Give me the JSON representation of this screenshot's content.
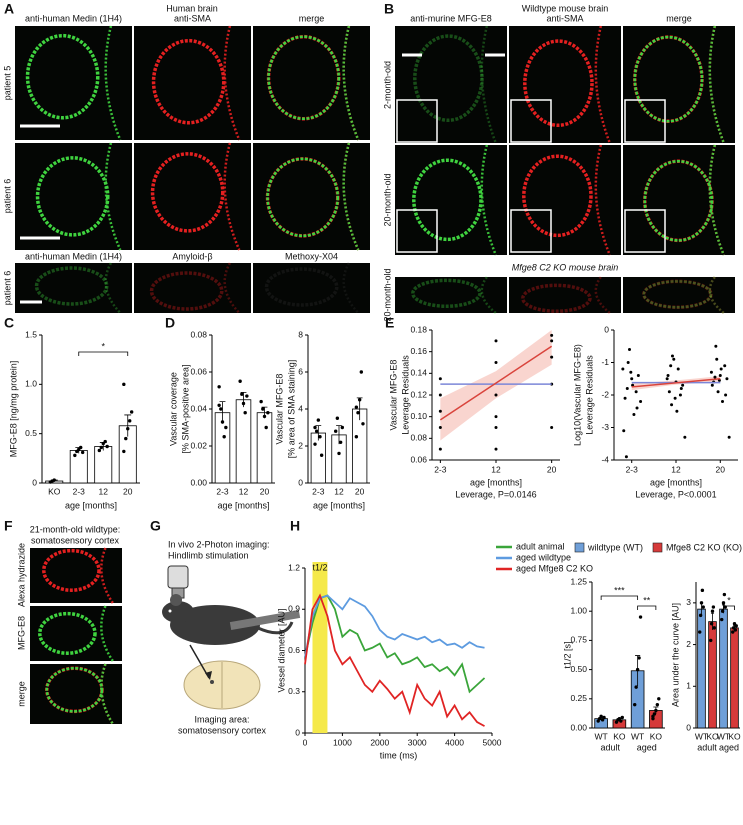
{
  "figure": {
    "letters": [
      "A",
      "B",
      "C",
      "D",
      "E",
      "F",
      "G",
      "H"
    ],
    "A": {
      "title": "Human brain",
      "headers": [
        "anti-human Medin (1H4)",
        "anti-SMA",
        "merge"
      ],
      "rows": [
        "patient 5",
        "patient 6",
        "patient 6"
      ],
      "headers2": [
        "anti-human Medin (1H4)",
        "Amyloid-β",
        "Methoxy-X04"
      ]
    },
    "B": {
      "title": "Wildtype mouse brain",
      "headers": [
        "anti-murine MFG-E8",
        "anti-SMA",
        "merge"
      ],
      "rows": [
        "2-month-old",
        "20-month-old",
        "20-month-old"
      ],
      "subtitle": "Mfge8 C2 KO mouse brain"
    },
    "F": {
      "title": [
        "21-month-old wildtype:",
        "somatosensory cortex"
      ],
      "rows": [
        "Alexa hydrazide",
        "MFG-E8",
        "merge"
      ]
    },
    "G": {
      "lines": [
        "In vivo 2-Photon imaging:",
        "Hindlimb stimulation"
      ],
      "area": [
        "Imaging area:",
        "somatosensory cortex"
      ]
    },
    "H": {
      "legend": [
        {
          "name": "wildtype (WT)",
          "color": "#6f9fd8"
        },
        {
          "name": "Mfge8 C2 KO (KO)",
          "color": "#d63a3a"
        }
      ]
    }
  },
  "chart_data": [
    {
      "type": "bar",
      "ylabel": [
        "MFG-E8 [ng/mg protein]"
      ],
      "xlabel": "age [months]",
      "categories": [
        "KO",
        "2-3",
        "12",
        "20"
      ],
      "values": [
        0.02,
        0.33,
        0.37,
        0.58
      ],
      "errors": [
        0.01,
        0.03,
        0.04,
        0.11
      ],
      "points": [
        [
          0.01,
          0.02,
          0.03
        ],
        [
          0.28,
          0.32,
          0.34,
          0.36,
          0.31
        ],
        [
          0.33,
          0.36,
          0.4,
          0.42,
          0.37
        ],
        [
          0.32,
          0.45,
          0.55,
          0.63,
          0.72,
          1.0
        ]
      ],
      "ylim": [
        0,
        1.5
      ],
      "yticks": [
        0,
        0.5,
        {
          "value": 1,
          "label": "1.0"
        },
        1.5
      ],
      "annotations": [
        "*"
      ]
    },
    {
      "type": "bar",
      "ylabel": [
        "Vascular coverage",
        "[% SMA-positive area]"
      ],
      "xlabel": "age [months]",
      "categories": [
        "2-3",
        "12",
        "20"
      ],
      "values": [
        0.038,
        0.045,
        0.038
      ],
      "errors": [
        0.006,
        0.004,
        0.003
      ],
      "points": [
        [
          0.052,
          0.04,
          0.033,
          0.025,
          0.03,
          0.042
        ],
        [
          0.055,
          0.048,
          0.043,
          0.038,
          0.047
        ],
        [
          0.044,
          0.04,
          0.036,
          0.03,
          0.038
        ]
      ],
      "ylim": [
        0,
        0.08
      ],
      "yticks": [
        {
          "value": 0,
          "label": "0.00"
        },
        0.02,
        0.04,
        0.06,
        0.08
      ]
    },
    {
      "type": "bar",
      "ylabel": [
        "Vascular MFG-E8",
        "[% area of SMA staining]"
      ],
      "xlabel": "age [months]",
      "categories": [
        "2-3",
        "12",
        "20"
      ],
      "values": [
        2.7,
        2.6,
        4.0
      ],
      "errors": [
        0.4,
        0.5,
        0.6
      ],
      "points": [
        [
          2.1,
          2.8,
          3.4,
          2.5,
          1.5,
          3.0
        ],
        [
          2.8,
          3.5,
          1.6,
          2.2,
          3.0
        ],
        [
          2.5,
          3.8,
          4.5,
          6.0,
          3.2,
          4.1
        ]
      ],
      "ylim": [
        0,
        8
      ],
      "yticks": [
        0,
        2,
        4,
        6,
        8
      ]
    },
    {
      "type": "scatter",
      "ylabel": [
        "Vascular MFG-E8",
        "Leverage Residuals"
      ],
      "xlabel": "age [months]",
      "note": "Leverage, P=0.0146",
      "xlim": [
        0.85,
        3.15
      ],
      "xticks": [
        {
          "value": 1,
          "label": "2-3"
        },
        {
          "value": 2,
          "label": "12"
        },
        {
          "value": 3,
          "label": "20"
        }
      ],
      "ylim": [
        0.06,
        0.18
      ],
      "yticks": [
        0.06,
        0.08,
        {
          "value": 0.1,
          "label": "0.10"
        },
        0.12,
        0.14,
        0.16,
        0.18
      ],
      "band": {
        "color": "#f6c3bb",
        "x": [
          1,
          2,
          3
        ],
        "lower": [
          0.078,
          0.117,
          0.148
        ],
        "upper": [
          0.117,
          0.142,
          0.18
        ]
      },
      "lines": [
        {
          "color": "#7b86d8",
          "x": [
            1,
            3
          ],
          "values": [
            0.13,
            0.13
          ]
        },
        {
          "color": "#d9443c",
          "x": [
            1,
            3
          ],
          "values": [
            0.097,
            0.165
          ]
        }
      ],
      "series": [
        {
          "color": "#000000",
          "x": [
            1,
            1,
            1,
            1,
            1,
            2,
            2,
            2,
            2,
            2,
            2,
            3,
            3,
            3,
            3,
            3
          ],
          "values": [
            0.07,
            0.09,
            0.105,
            0.12,
            0.135,
            0.07,
            0.09,
            0.1,
            0.12,
            0.15,
            0.17,
            0.09,
            0.13,
            0.155,
            0.17,
            0.175
          ]
        }
      ]
    },
    {
      "type": "scatter",
      "ylabel": [
        "Log10(Vascular MFG-E8)",
        "Leverage Residuals"
      ],
      "xlabel": "age [months]",
      "note": "Leverage, P<0.0001",
      "xlim": [
        0.6,
        3.4
      ],
      "xticks": [
        {
          "value": 1,
          "label": "2-3"
        },
        {
          "value": 2,
          "label": "12"
        },
        {
          "value": 3,
          "label": "20"
        }
      ],
      "ylim": [
        -4,
        0
      ],
      "yticks": [
        -4,
        -3,
        -2,
        -1,
        0
      ],
      "band": {
        "color": "#f6c3bb",
        "x": [
          1,
          2,
          3
        ],
        "lower": [
          -1.85,
          -1.68,
          -1.58
        ],
        "upper": [
          -1.65,
          -1.55,
          -1.42
        ]
      },
      "lines": [
        {
          "color": "#7b86d8",
          "x": [
            1,
            3
          ],
          "values": [
            -1.62,
            -1.62
          ]
        },
        {
          "color": "#d9443c",
          "x": [
            1,
            3
          ],
          "values": [
            -1.75,
            -1.5
          ]
        }
      ],
      "series": [
        {
          "color": "#000000",
          "x": [
            0.8,
            0.85,
            0.9,
            0.95,
            1.0,
            1.05,
            1.1,
            1.15,
            1.2,
            0.82,
            0.92,
            1.02,
            1.12,
            0.88,
            0.98,
            1.8,
            1.85,
            1.9,
            1.95,
            2.0,
            2.05,
            2.1,
            2.15,
            2.2,
            1.82,
            1.92,
            2.02,
            2.12,
            1.88,
            1.98,
            2.8,
            2.85,
            2.9,
            2.95,
            3.0,
            3.05,
            3.1,
            3.15,
            3.2,
            2.82,
            2.92,
            3.02,
            3.12,
            2.88,
            2.98
          ],
          "values": [
            -1.2,
            -2.1,
            -1.8,
            -0.6,
            -1.5,
            -2.6,
            -1.9,
            -1.4,
            -2.2,
            -3.1,
            -1.0,
            -1.7,
            -2.4,
            -3.9,
            -1.3,
            -1.5,
            -1.9,
            -2.3,
            -0.9,
            -1.6,
            -1.2,
            -2.0,
            -1.7,
            -3.3,
            -1.4,
            -0.8,
            -2.5,
            -1.8,
            -1.1,
            -2.1,
            -1.3,
            -1.6,
            -0.5,
            -1.9,
            -1.4,
            -2.2,
            -1.1,
            -1.5,
            -3.3,
            -1.7,
            -0.9,
            -1.2,
            -2.0,
            -1.45,
            -1.55
          ]
        }
      ]
    },
    {
      "type": "line",
      "ylabel": [
        "Vessel diameter [AU]"
      ],
      "xlabel": "time (ms)",
      "x": [
        0,
        200,
        400,
        600,
        800,
        1000,
        1200,
        1400,
        1600,
        1800,
        2000,
        2200,
        2400,
        2600,
        2800,
        3000,
        3200,
        3400,
        3600,
        3800,
        4000,
        4200,
        4400,
        4600,
        4800
      ],
      "xlim": [
        0,
        5000
      ],
      "xticks": [
        0,
        1000,
        2000,
        3000,
        4000,
        5000
      ],
      "ylim": [
        0,
        1.2
      ],
      "yticks": [
        0,
        0.3,
        0.6,
        0.9,
        1.2
      ],
      "highlight": {
        "label": "t1/2",
        "color": "#f5e94a",
        "range": [
          200,
          600
        ]
      },
      "series": [
        {
          "name": "adult animal",
          "color": "#3aa53a",
          "values": [
            0.55,
            0.8,
            0.98,
            1.0,
            0.9,
            0.7,
            0.75,
            0.72,
            0.6,
            0.62,
            0.65,
            0.55,
            0.58,
            0.5,
            0.52,
            0.55,
            0.48,
            0.5,
            0.45,
            0.48,
            0.42,
            0.5,
            0.3,
            0.35,
            0.4
          ]
        },
        {
          "name": "aged wildtype",
          "color": "#5d9be0",
          "values": [
            0.55,
            0.85,
            0.98,
            1.0,
            0.95,
            0.9,
            0.98,
            0.95,
            0.92,
            0.85,
            0.75,
            0.7,
            0.68,
            0.72,
            0.7,
            0.68,
            0.7,
            0.66,
            0.68,
            0.64,
            0.65,
            0.62,
            0.66,
            0.63,
            0.62
          ]
        },
        {
          "name": "aged Mfge8 C2 KO",
          "color": "#e02424",
          "values": [
            0.5,
            0.9,
            1.0,
            0.85,
            0.6,
            0.5,
            0.55,
            0.45,
            0.35,
            0.3,
            0.38,
            0.32,
            0.25,
            0.3,
            0.15,
            0.35,
            0.25,
            0.2,
            0.3,
            0.12,
            0.2,
            0.1,
            0.15,
            0.08,
            0.05
          ]
        }
      ]
    },
    {
      "type": "bar",
      "ylabel": [
        "t1/2 [s]"
      ],
      "categories": [
        "WT",
        "KO",
        "WT",
        "KO"
      ],
      "groups": [
        "adult",
        "aged"
      ],
      "colors": [
        "#6f9fd8",
        "#d63a3a",
        "#6f9fd8",
        "#d63a3a"
      ],
      "values": [
        0.08,
        0.07,
        0.49,
        0.15
      ],
      "errors": [
        0.01,
        0.01,
        0.13,
        0.03
      ],
      "points": [
        [
          0.06,
          0.08,
          0.1,
          0.07,
          0.09
        ],
        [
          0.05,
          0.07,
          0.08,
          0.06,
          0.09
        ],
        [
          0.2,
          0.35,
          0.5,
          0.6,
          0.95
        ],
        [
          0.08,
          0.12,
          0.15,
          0.2,
          0.25,
          0.1
        ]
      ],
      "ylim": [
        0,
        1.25
      ],
      "yticks": [
        {
          "value": 0,
          "label": "0.00"
        },
        0.25,
        {
          "value": 0.5,
          "label": "0.50"
        },
        0.75,
        {
          "value": 1,
          "label": "1.00"
        },
        1.25
      ],
      "annotations": [
        "***",
        "**"
      ]
    },
    {
      "type": "bar",
      "ylabel": [
        "Area under the curve [AU]"
      ],
      "categories": [
        "WT",
        "KO",
        "WT",
        "KO"
      ],
      "groups": [
        "adult",
        "aged"
      ],
      "colors": [
        "#6f9fd8",
        "#d63a3a",
        "#6f9fd8",
        "#d63a3a"
      ],
      "values": [
        2.85,
        2.55,
        2.85,
        2.4
      ],
      "errors": [
        0.15,
        0.2,
        0.1,
        0.06
      ],
      "points": [
        [
          2.3,
          2.7,
          3.0,
          3.3,
          2.9
        ],
        [
          2.1,
          2.5,
          2.8,
          2.9,
          2.4
        ],
        [
          2.6,
          2.8,
          3.0,
          3.2,
          2.9
        ],
        [
          2.3,
          2.4,
          2.5,
          2.35,
          2.45
        ]
      ],
      "ylim": [
        0,
        3.5
      ],
      "yticks": [
        0,
        1,
        2,
        3
      ],
      "annotations": [
        "*"
      ]
    }
  ]
}
